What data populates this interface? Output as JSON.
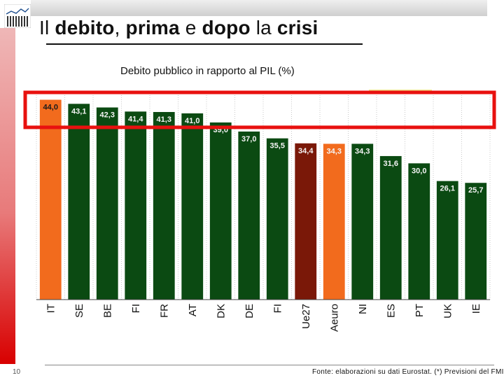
{
  "slide": {
    "title_parts": [
      "Il ",
      "debito",
      ", ",
      "prima",
      " e ",
      "dopo",
      " la ",
      "crisi"
    ],
    "page_number": "10",
    "source": "Fonte: elaborazioni su dati Eurostat. (*) Previsioni del FMI."
  },
  "colors": {
    "default": "#0b4a12",
    "italy": "#f26b1d",
    "aggregate": "#7a1808",
    "highlight_box": "#e8110f"
  },
  "chart_data": {
    "type": "bar",
    "title": "Debito pubblico in rapporto al PIL (%)",
    "categories": [
      "IT",
      "SE",
      "BE",
      "FI",
      "FR",
      "AT",
      "DK",
      "DE",
      "FI",
      "Ue27",
      "Aeuro",
      "NI",
      "ES",
      "PT",
      "UK",
      "IE"
    ],
    "values": [
      44.0,
      43.1,
      42.3,
      41.4,
      41.3,
      41.0,
      39.0,
      37.0,
      35.5,
      34.4,
      34.3,
      34.3,
      31.6,
      30.0,
      26.1,
      25.7
    ],
    "labels": [
      "44,0",
      "43,1",
      "42,3",
      "41,4",
      "41,3",
      "41,0",
      "39,0",
      "37,0",
      "35,5",
      "34,4",
      "34,3",
      "34,3",
      "31,6",
      "30,0",
      "26,1",
      "25,7"
    ],
    "bar_kind": [
      "italy",
      "default",
      "default",
      "default",
      "default",
      "default",
      "default",
      "default",
      "default",
      "aggregate",
      "italy",
      "default",
      "default",
      "default",
      "default",
      "default"
    ],
    "ylim": [
      0,
      45
    ],
    "xlabel": "",
    "ylabel": "",
    "grid": true,
    "highlight_range": [
      37.0,
      45.0
    ]
  }
}
